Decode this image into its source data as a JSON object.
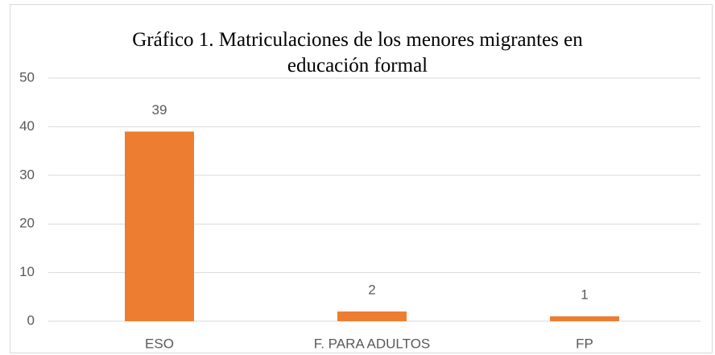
{
  "chart_data": {
    "type": "bar",
    "title": "Gráfico 1. Matriculaciones de los menores migrantes en educación formal",
    "categories": [
      "ESO",
      "F. PARA ADULTOS",
      "FP"
    ],
    "values": [
      39,
      2,
      1
    ],
    "color": "#ed7d31",
    "ylim": [
      0,
      50
    ],
    "yticks": [
      0,
      10,
      20,
      30,
      40,
      50
    ],
    "grid": true
  }
}
